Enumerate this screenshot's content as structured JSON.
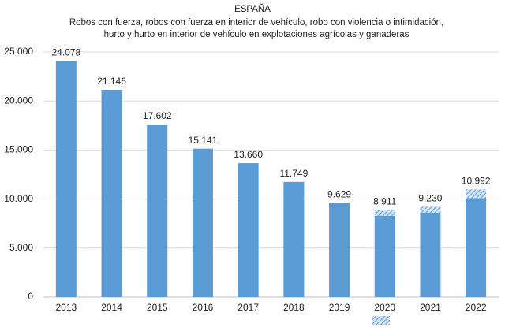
{
  "chart_data": {
    "type": "stacked_bar",
    "title": "ESPAÑA",
    "subtitle": "Robos con fuerza, robos con fuerza en interior de vehículo, robo con violencia o intimidación, hurto y hurto en interior de vehículo en explotaciones agrícolas y ganaderas",
    "categories": [
      "2013",
      "2014",
      "2015",
      "2016",
      "2017",
      "2018",
      "2019",
      "2020",
      "2021",
      "2022"
    ],
    "series": [
      {
        "color": "#5b9bd5",
        "values": [
          24078,
          21146,
          17602,
          15141,
          13660,
          11749,
          9629,
          8300,
          8600,
          10100
        ]
      },
      {
        "color": "#5b9bd5",
        "hatched": true,
        "values": [
          null,
          null,
          null,
          null,
          null,
          null,
          null,
          611,
          630,
          892
        ]
      }
    ],
    "totals": [
      24078,
      21146,
      17602,
      15141,
      13660,
      11749,
      9629,
      8911,
      9230,
      10992
    ],
    "value_labels": [
      "24.078",
      "21.146",
      "17.602",
      "15.141",
      "13.660",
      "11.749",
      "9.629",
      "8.911",
      "9.230",
      "10.992"
    ],
    "ylim": [
      0,
      25000
    ],
    "yticks": [
      0,
      {
        "value": 5000,
        "label": "5.000"
      },
      {
        "value": 10000,
        "label": "10.000"
      },
      {
        "value": 15000,
        "label": "15.000"
      },
      {
        "value": 20000,
        "label": "20.000"
      },
      {
        "value": 25000,
        "label": "25.000"
      }
    ],
    "grid": true
  }
}
